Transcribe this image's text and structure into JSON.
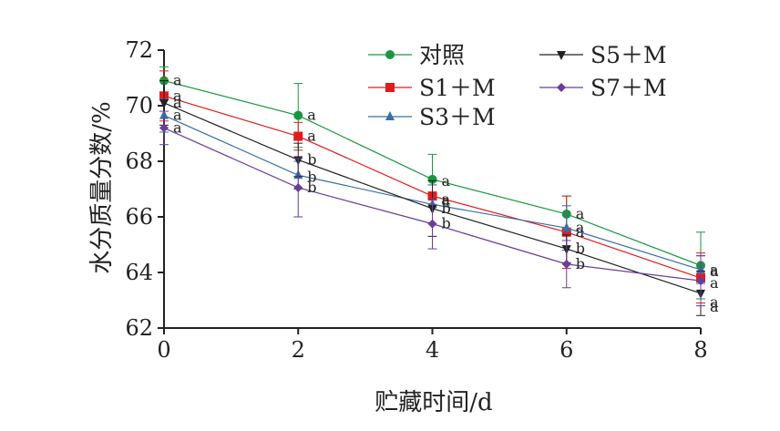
{
  "chart_data": {
    "type": "line",
    "title": "",
    "xlabel": "贮藏时间/d",
    "ylabel": "水分质量分数/%",
    "x": [
      0,
      2,
      4,
      6,
      8
    ],
    "xticks": [
      "0",
      "2",
      "4",
      "6",
      "8"
    ],
    "yticks": [
      "62",
      "64",
      "66",
      "68",
      "70",
      "72"
    ],
    "xlim": [
      0,
      8
    ],
    "ylim": [
      62,
      72
    ],
    "grid": false,
    "legend": "top-right",
    "series": [
      {
        "name": "对照",
        "color": "#1a9641",
        "marker": "circle",
        "values": [
          70.9,
          69.65,
          67.35,
          66.1,
          64.25
        ],
        "errors": [
          0.5,
          1.15,
          0.9,
          0.65,
          1.2
        ],
        "labels": [
          "a",
          "a",
          "a",
          "a",
          "a"
        ]
      },
      {
        "name": "S1＋M",
        "color": "#e31a1c",
        "marker": "square",
        "values": [
          70.35,
          68.9,
          66.75,
          65.45,
          63.8
        ],
        "errors": [
          0.9,
          0.5,
          0.4,
          1.3,
          0.9
        ],
        "labels": [
          "a",
          "a",
          "a",
          "a",
          "a"
        ]
      },
      {
        "name": "S3＋M",
        "color": "#3a6fa8",
        "marker": "triangle",
        "values": [
          69.65,
          67.5,
          66.45,
          65.6,
          64.1
        ],
        "errors": [
          0.6,
          0.5,
          0.7,
          0.8,
          0.5
        ],
        "labels": [
          "a",
          "b",
          "a",
          "a",
          "a"
        ]
      },
      {
        "name": "S5＋M",
        "color": "#222222",
        "marker": "triangle-down",
        "values": [
          70.1,
          68.05,
          66.3,
          64.85,
          63.25
        ],
        "errors": [
          0.8,
          0.6,
          1.0,
          0.5,
          0.8
        ],
        "labels": [
          "a",
          "b",
          "b",
          "b",
          "a"
        ]
      },
      {
        "name": "S7＋M",
        "color": "#6a3d9a",
        "marker": "diamond",
        "values": [
          69.2,
          67.05,
          65.75,
          64.3,
          63.7
        ],
        "errors": [
          0.6,
          1.05,
          0.9,
          0.85,
          0.9
        ],
        "labels": [
          "a",
          "b",
          "b",
          "b",
          "a"
        ]
      }
    ]
  }
}
